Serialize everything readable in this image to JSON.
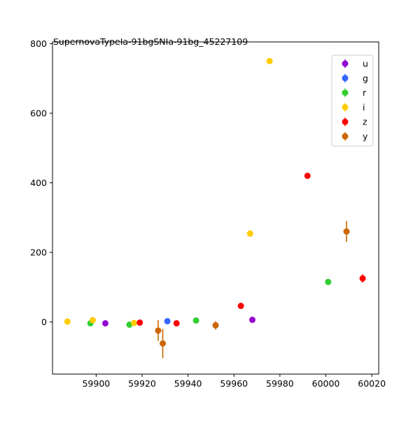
{
  "chart_data": {
    "type": "scatter",
    "title": "SupernovaTypeIa-91bgSNIa-91bg_45227109",
    "xlabel": "",
    "ylabel": "",
    "xlim": [
      59881,
      60023
    ],
    "ylim": [
      -150,
      805
    ],
    "x_ticks": [
      59900,
      59920,
      59940,
      59960,
      59980,
      60000,
      60020
    ],
    "y_ticks": [
      0,
      200,
      400,
      600,
      800
    ],
    "legend_position": "top-right",
    "series": [
      {
        "name": "u",
        "color": "#9400d3",
        "points": [
          {
            "x": 59904.0,
            "y": -4,
            "err": 5
          },
          {
            "x": 59968.0,
            "y": 6,
            "err": 6
          }
        ]
      },
      {
        "name": "g",
        "color": "#3366ff",
        "points": [
          {
            "x": 59931.0,
            "y": 2,
            "err": 4
          }
        ]
      },
      {
        "name": "r",
        "color": "#32cd32",
        "points": [
          {
            "x": 59897.5,
            "y": -4,
            "err": 5
          },
          {
            "x": 59914.5,
            "y": -8,
            "err": 5
          },
          {
            "x": 59943.5,
            "y": 4,
            "err": 4
          },
          {
            "x": 60001.0,
            "y": 115,
            "err": 6
          }
        ]
      },
      {
        "name": "i",
        "color": "#ffcc00",
        "points": [
          {
            "x": 59887.5,
            "y": 1,
            "err": 4
          },
          {
            "x": 59898.5,
            "y": 5,
            "err": 4
          },
          {
            "x": 59916.5,
            "y": -3,
            "err": 4
          },
          {
            "x": 59967.0,
            "y": 254,
            "err": 6
          },
          {
            "x": 59975.5,
            "y": 750,
            "err": 7
          }
        ]
      },
      {
        "name": "z",
        "color": "#ff0000",
        "points": [
          {
            "x": 59919.0,
            "y": -2,
            "err": 6
          },
          {
            "x": 59935.0,
            "y": -4,
            "err": 6
          },
          {
            "x": 59963.0,
            "y": 46,
            "err": 8
          },
          {
            "x": 59992.0,
            "y": 420,
            "err": 9
          },
          {
            "x": 60016.0,
            "y": 125,
            "err": 12
          }
        ]
      },
      {
        "name": "y",
        "color": "#cc6600",
        "points": [
          {
            "x": 59927.0,
            "y": -25,
            "err": 30
          },
          {
            "x": 59929.0,
            "y": -62,
            "err": 42
          },
          {
            "x": 59952.0,
            "y": -10,
            "err": 12
          },
          {
            "x": 60009.0,
            "y": 260,
            "err": 30
          }
        ]
      }
    ]
  }
}
